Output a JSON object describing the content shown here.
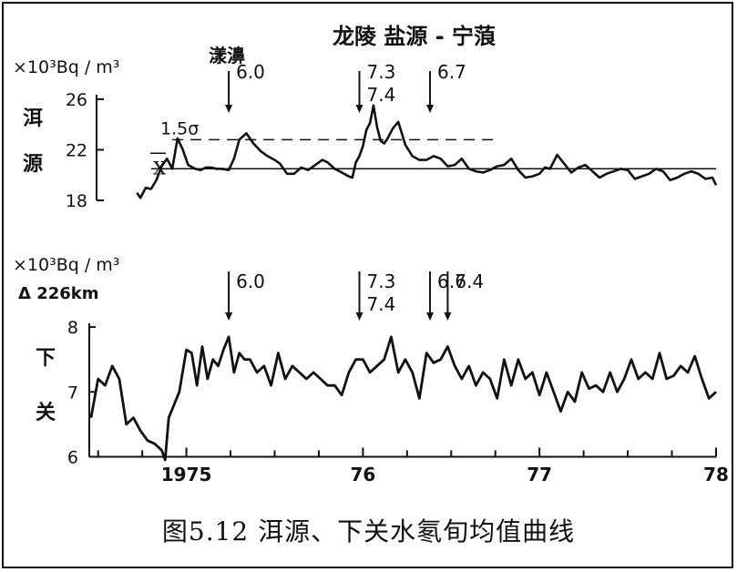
{
  "chart_data": [
    {
      "type": "line",
      "station": "洱源",
      "unit": "×10³Bq / m³",
      "yticks": [
        18,
        22,
        26
      ],
      "ylim": [
        18,
        27
      ],
      "xlim": [
        1974.45,
        1978.0
      ],
      "mean_label": "X",
      "mean_value": 20.5,
      "threshold_label": "1.5σ",
      "threshold_value": 22.8,
      "event_group_label": "龙陵  盐源 - 宁蒗",
      "events": [
        {
          "name": "漾濞",
          "magnitude": [
            "6.0"
          ],
          "x": 1975.24
        },
        {
          "name": "",
          "magnitude": [
            "7.3",
            "7.4"
          ],
          "x": 1975.98
        },
        {
          "name": "",
          "magnitude": [
            "6.7"
          ],
          "x": 1976.38
        }
      ],
      "series": [
        {
          "x": [
            1974.72,
            1974.74,
            1974.77,
            1974.8,
            1974.83,
            1974.86,
            1974.89,
            1974.92,
            1974.95,
            1974.98,
            1975.01,
            1975.05,
            1975.08,
            1975.11,
            1975.14,
            1975.17,
            1975.2,
            1975.24,
            1975.27,
            1975.3,
            1975.34,
            1975.38,
            1975.42,
            1975.46,
            1975.5,
            1975.53,
            1975.57,
            1975.61,
            1975.65,
            1975.69,
            1975.73,
            1975.77,
            1975.8,
            1975.84,
            1975.88,
            1975.92,
            1975.94,
            1975.96,
            1975.98,
            1976.0,
            1976.02,
            1976.04,
            1976.06,
            1976.08,
            1976.1,
            1976.12,
            1976.14,
            1976.17,
            1976.2,
            1976.24,
            1976.28,
            1976.32,
            1976.36,
            1976.4,
            1976.44,
            1976.48,
            1976.52,
            1976.56,
            1976.6,
            1976.64,
            1976.68,
            1976.72,
            1976.76,
            1976.8,
            1976.84,
            1976.88,
            1976.92,
            1976.96,
            1977.0,
            1977.03,
            1977.06,
            1977.1,
            1977.14,
            1977.18,
            1977.22,
            1977.26,
            1977.3,
            1977.34,
            1977.38,
            1977.42,
            1977.46,
            1977.5,
            1977.54,
            1977.58,
            1977.62,
            1977.66,
            1977.7,
            1977.74,
            1977.78,
            1977.82,
            1977.86,
            1977.9,
            1977.94,
            1977.98,
            1978.0
          ],
          "y": [
            18.6,
            18.2,
            19.0,
            18.9,
            19.6,
            20.7,
            21.3,
            20.5,
            22.9,
            22.0,
            20.8,
            20.5,
            20.4,
            20.6,
            20.6,
            20.5,
            20.5,
            20.4,
            21.3,
            22.8,
            23.3,
            22.5,
            21.9,
            21.5,
            21.2,
            20.9,
            20.1,
            20.1,
            20.6,
            20.4,
            20.8,
            21.2,
            21.0,
            20.5,
            20.2,
            19.9,
            19.8,
            21.0,
            21.5,
            22.3,
            23.6,
            24.1,
            25.5,
            23.8,
            22.7,
            22.5,
            22.9,
            23.7,
            24.2,
            22.4,
            21.5,
            21.2,
            21.2,
            21.5,
            21.3,
            20.7,
            20.8,
            21.3,
            20.5,
            20.3,
            20.2,
            20.4,
            20.7,
            20.8,
            21.3,
            20.4,
            19.8,
            19.9,
            20.1,
            20.6,
            20.5,
            21.6,
            20.9,
            20.2,
            20.6,
            20.8,
            20.3,
            19.8,
            20.1,
            20.3,
            20.5,
            20.4,
            19.7,
            19.9,
            20.1,
            20.5,
            20.3,
            19.6,
            19.8,
            20.1,
            20.3,
            20.1,
            19.7,
            19.8,
            19.2
          ]
        }
      ]
    },
    {
      "type": "line",
      "station": "下关",
      "unit": "×10³Bq / m³",
      "distance_label": "Δ 226km",
      "yticks": [
        6,
        7,
        8
      ],
      "ylim": [
        5.95,
        8.1
      ],
      "xlim": [
        1974.45,
        1978.0
      ],
      "xticks": [
        "1975",
        "76",
        "77",
        "78"
      ],
      "events": [
        {
          "magnitude": [
            "6.0"
          ],
          "x": 1975.24
        },
        {
          "magnitude": [
            "7.3",
            "7.4"
          ],
          "x": 1975.98
        },
        {
          "magnitude": [
            "6.7"
          ],
          "x": 1976.38
        },
        {
          "magnitude": [
            "6.4"
          ],
          "x": 1976.48
        }
      ],
      "series": [
        {
          "x": [
            1974.46,
            1974.5,
            1974.54,
            1974.58,
            1974.62,
            1974.66,
            1974.7,
            1974.74,
            1974.78,
            1974.82,
            1974.86,
            1974.88,
            1974.9,
            1974.93,
            1974.96,
            1975.0,
            1975.03,
            1975.06,
            1975.09,
            1975.12,
            1975.15,
            1975.18,
            1975.21,
            1975.24,
            1975.27,
            1975.3,
            1975.33,
            1975.36,
            1975.4,
            1975.44,
            1975.48,
            1975.52,
            1975.56,
            1975.6,
            1975.64,
            1975.68,
            1975.72,
            1975.76,
            1975.8,
            1975.84,
            1975.88,
            1975.92,
            1975.96,
            1976.0,
            1976.04,
            1976.08,
            1976.12,
            1976.16,
            1976.2,
            1976.24,
            1976.28,
            1976.32,
            1976.36,
            1976.4,
            1976.44,
            1976.48,
            1976.52,
            1976.56,
            1976.6,
            1976.64,
            1976.68,
            1976.72,
            1976.76,
            1976.8,
            1976.84,
            1976.88,
            1976.92,
            1976.96,
            1977.0,
            1977.04,
            1977.08,
            1977.12,
            1977.16,
            1977.2,
            1977.24,
            1977.28,
            1977.32,
            1977.36,
            1977.4,
            1977.44,
            1977.48,
            1977.52,
            1977.56,
            1977.6,
            1977.64,
            1977.68,
            1977.72,
            1977.76,
            1977.8,
            1977.84,
            1977.88,
            1977.92,
            1977.96,
            1978.0
          ],
          "y": [
            6.6,
            7.2,
            7.1,
            7.4,
            7.2,
            6.5,
            6.6,
            6.4,
            6.25,
            6.2,
            6.1,
            5.95,
            6.6,
            6.8,
            7.0,
            7.65,
            7.6,
            7.1,
            7.7,
            7.2,
            7.5,
            7.4,
            7.65,
            7.85,
            7.3,
            7.6,
            7.5,
            7.5,
            7.3,
            7.4,
            7.1,
            7.6,
            7.2,
            7.4,
            7.3,
            7.2,
            7.3,
            7.2,
            7.1,
            7.1,
            6.95,
            7.3,
            7.5,
            7.5,
            7.3,
            7.4,
            7.5,
            7.85,
            7.3,
            7.5,
            7.3,
            6.9,
            7.6,
            7.45,
            7.5,
            7.7,
            7.4,
            7.2,
            7.4,
            7.1,
            7.3,
            7.2,
            6.9,
            7.5,
            7.1,
            7.5,
            7.2,
            7.3,
            6.95,
            7.3,
            7.0,
            6.7,
            7.0,
            6.85,
            7.3,
            7.05,
            7.1,
            7.0,
            7.3,
            7.0,
            7.2,
            7.5,
            7.2,
            7.3,
            7.2,
            7.6,
            7.2,
            7.25,
            7.4,
            7.3,
            7.55,
            7.2,
            6.9,
            7.0
          ]
        }
      ]
    }
  ],
  "caption": "图5.12   洱源、下关水氡旬均值曲线"
}
